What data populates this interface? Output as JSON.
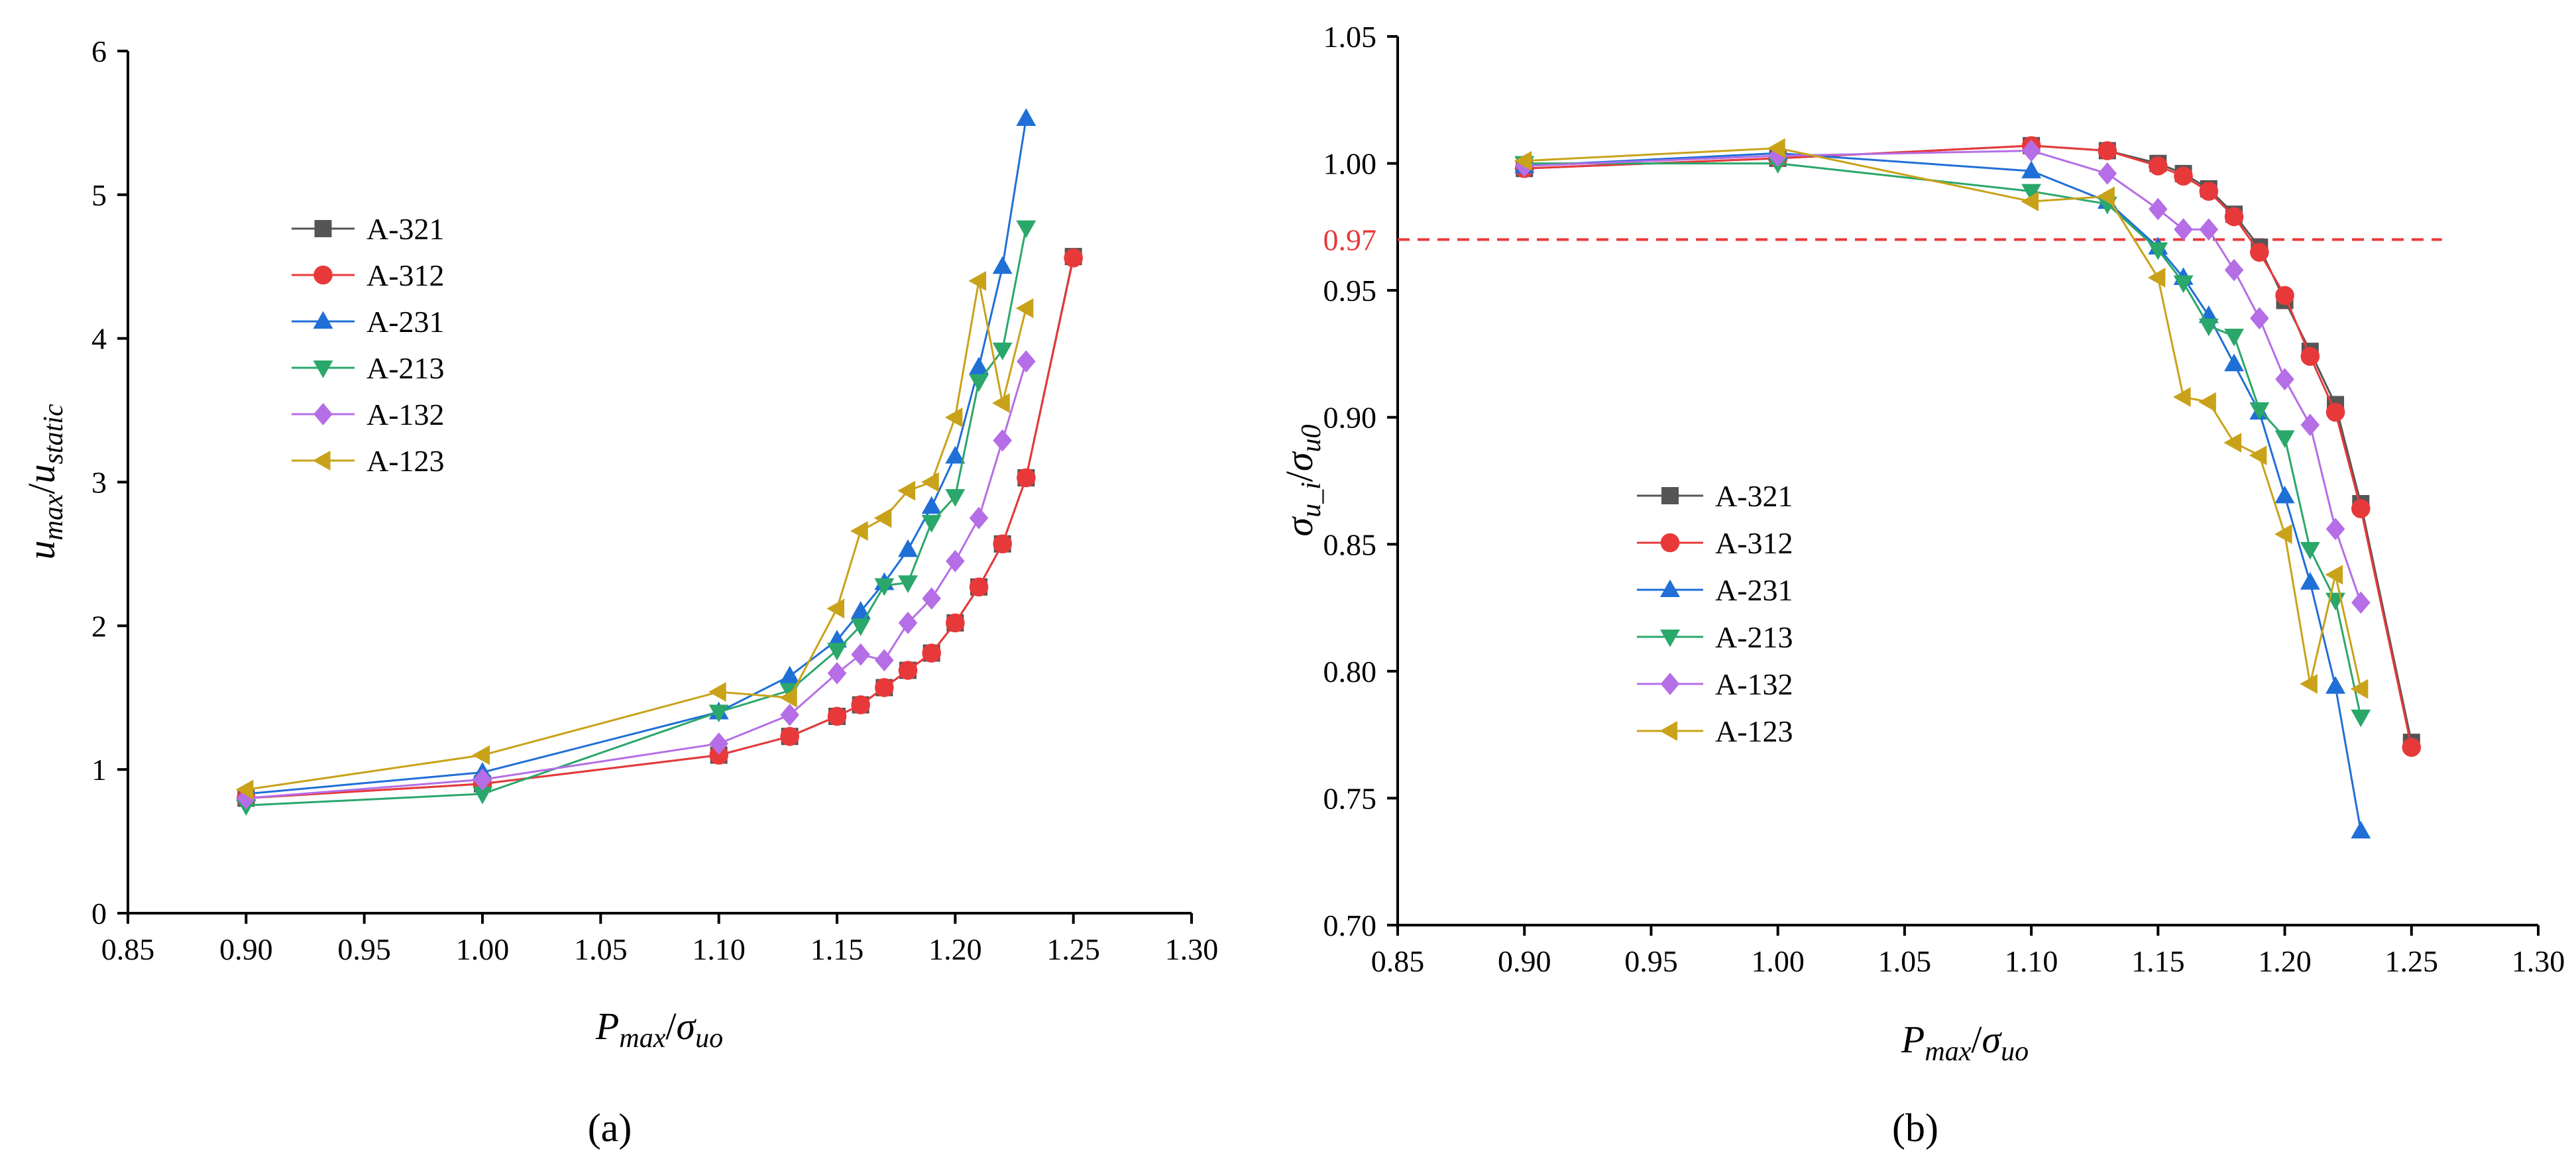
{
  "figure": {
    "panel_labels": [
      "(a)",
      "(b)"
    ]
  },
  "colors": {
    "A-321": "#555555",
    "A-312": "#e8393a",
    "A-231": "#1f6fd6",
    "A-213": "#2aa76a",
    "A-132": "#b56ee6",
    "A-123": "#c9a21a",
    "reference_line": "#e8393a"
  },
  "markers": {
    "A-321": "square",
    "A-312": "circle",
    "A-231": "triangle-up",
    "A-213": "triangle-down",
    "A-132": "diamond",
    "A-123": "triangle-left"
  },
  "chart_data": [
    {
      "type": "line",
      "panel": "(a)",
      "xlabel": {
        "main": "P",
        "main_sub": "max",
        "sep": "/",
        "denom": "σ",
        "denom_sub": "uo"
      },
      "ylabel": {
        "main": "u",
        "main_sub": "max",
        "sep": "/",
        "denom": "u",
        "denom_sub": "static"
      },
      "xlim": [
        0.85,
        1.3
      ],
      "ylim": [
        0,
        6
      ],
      "xticks": [
        "0.85",
        "0.90",
        "0.95",
        "1.00",
        "1.05",
        "1.10",
        "1.15",
        "1.20",
        "1.25",
        "1.30"
      ],
      "yticks": [
        "0",
        "1",
        "2",
        "3",
        "4",
        "5",
        "6"
      ],
      "legend": {
        "position": "upper-left",
        "entries": [
          "A-321",
          "A-312",
          "A-231",
          "A-213",
          "A-132",
          "A-123"
        ]
      },
      "series": [
        {
          "name": "A-321",
          "x": [
            0.9,
            1.0,
            1.1,
            1.13,
            1.15,
            1.16,
            1.17,
            1.18,
            1.19,
            1.2,
            1.21,
            1.22,
            1.23,
            1.25
          ],
          "y": [
            0.8,
            0.9,
            1.1,
            1.23,
            1.37,
            1.45,
            1.57,
            1.69,
            1.81,
            2.02,
            2.27,
            2.57,
            3.03,
            4.57
          ]
        },
        {
          "name": "A-312",
          "x": [
            0.9,
            1.0,
            1.1,
            1.13,
            1.15,
            1.16,
            1.17,
            1.18,
            1.19,
            1.2,
            1.21,
            1.22,
            1.23,
            1.25
          ],
          "y": [
            0.8,
            0.9,
            1.1,
            1.23,
            1.37,
            1.45,
            1.57,
            1.69,
            1.81,
            2.02,
            2.27,
            2.57,
            3.03,
            4.56
          ]
        },
        {
          "name": "A-231",
          "x": [
            0.9,
            1.0,
            1.1,
            1.13,
            1.15,
            1.16,
            1.17,
            1.18,
            1.19,
            1.2,
            1.21,
            1.22,
            1.23
          ],
          "y": [
            0.83,
            0.98,
            1.4,
            1.65,
            1.9,
            2.1,
            2.3,
            2.53,
            2.83,
            3.18,
            3.8,
            4.5,
            5.53
          ]
        },
        {
          "name": "A-213",
          "x": [
            0.9,
            1.0,
            1.1,
            1.13,
            1.15,
            1.16,
            1.17,
            1.18,
            1.19,
            1.2,
            1.21,
            1.22,
            1.23
          ],
          "y": [
            0.75,
            0.83,
            1.4,
            1.55,
            1.83,
            2.0,
            2.28,
            2.3,
            2.72,
            2.9,
            3.7,
            3.92,
            4.77
          ]
        },
        {
          "name": "A-132",
          "x": [
            0.9,
            1.0,
            1.1,
            1.13,
            1.15,
            1.16,
            1.17,
            1.18,
            1.19,
            1.2,
            1.21,
            1.22,
            1.23
          ],
          "y": [
            0.8,
            0.93,
            1.18,
            1.38,
            1.67,
            1.8,
            1.76,
            2.02,
            2.19,
            2.45,
            2.75,
            3.29,
            3.84
          ]
        },
        {
          "name": "A-123",
          "x": [
            0.9,
            1.0,
            1.1,
            1.13,
            1.15,
            1.16,
            1.17,
            1.18,
            1.19,
            1.2,
            1.21,
            1.22,
            1.23
          ],
          "y": [
            0.86,
            1.1,
            1.54,
            1.5,
            2.12,
            2.66,
            2.75,
            2.94,
            3.0,
            3.45,
            4.4,
            3.55,
            4.21
          ]
        }
      ]
    },
    {
      "type": "line",
      "panel": "(b)",
      "xlabel": {
        "main": "P",
        "main_sub": "max",
        "sep": "/",
        "denom": "σ",
        "denom_sub": "uo"
      },
      "ylabel": {
        "main": "σ",
        "main_sub": "u_i",
        "sep": "/",
        "denom": "σ",
        "denom_sub": "u0"
      },
      "xlim": [
        0.85,
        1.3
      ],
      "ylim": [
        0.7,
        1.05
      ],
      "xticks": [
        "0.85",
        "0.90",
        "0.95",
        "1.00",
        "1.05",
        "1.10",
        "1.15",
        "1.20",
        "1.25",
        "1.30"
      ],
      "yticks": [
        "0.70",
        "0.75",
        "0.80",
        "0.85",
        "0.90",
        "0.95",
        "1.00",
        "1.05"
      ],
      "reference_line": {
        "y": 0.97,
        "label": "0.97",
        "style": "dashed"
      },
      "legend": {
        "position": "lower-left",
        "entries": [
          "A-321",
          "A-312",
          "A-231",
          "A-213",
          "A-132",
          "A-123"
        ]
      },
      "series": [
        {
          "name": "A-321",
          "x": [
            0.9,
            1.0,
            1.1,
            1.13,
            1.15,
            1.16,
            1.17,
            1.18,
            1.19,
            1.2,
            1.21,
            1.22,
            1.23,
            1.25
          ],
          "y": [
            0.998,
            1.002,
            1.007,
            1.005,
            1.0,
            0.996,
            0.99,
            0.98,
            0.967,
            0.946,
            0.926,
            0.905,
            0.866,
            0.772
          ]
        },
        {
          "name": "A-312",
          "x": [
            0.9,
            1.0,
            1.1,
            1.13,
            1.15,
            1.16,
            1.17,
            1.18,
            1.19,
            1.2,
            1.21,
            1.22,
            1.23,
            1.25
          ],
          "y": [
            0.998,
            1.002,
            1.007,
            1.005,
            0.999,
            0.995,
            0.989,
            0.979,
            0.965,
            0.948,
            0.924,
            0.902,
            0.864,
            0.77
          ]
        },
        {
          "name": "A-231",
          "x": [
            0.9,
            1.0,
            1.1,
            1.13,
            1.15,
            1.16,
            1.17,
            1.18,
            1.19,
            1.2,
            1.21,
            1.22,
            1.23
          ],
          "y": [
            0.999,
            1.004,
            0.997,
            0.985,
            0.967,
            0.955,
            0.94,
            0.921,
            0.902,
            0.869,
            0.835,
            0.794,
            0.737
          ]
        },
        {
          "name": "A-213",
          "x": [
            0.9,
            1.0,
            1.1,
            1.13,
            1.15,
            1.16,
            1.17,
            1.18,
            1.19,
            1.2,
            1.21,
            1.22,
            1.23
          ],
          "y": [
            1.0,
            1.0,
            0.989,
            0.984,
            0.966,
            0.953,
            0.936,
            0.932,
            0.903,
            0.892,
            0.848,
            0.828,
            0.782
          ]
        },
        {
          "name": "A-132",
          "x": [
            0.9,
            1.0,
            1.1,
            1.13,
            1.15,
            1.16,
            1.17,
            1.18,
            1.19,
            1.2,
            1.21,
            1.22,
            1.23
          ],
          "y": [
            0.999,
            1.003,
            1.005,
            0.996,
            0.982,
            0.974,
            0.974,
            0.958,
            0.939,
            0.915,
            0.897,
            0.856,
            0.827
          ]
        },
        {
          "name": "A-123",
          "x": [
            0.9,
            1.0,
            1.1,
            1.13,
            1.15,
            1.16,
            1.17,
            1.18,
            1.19,
            1.2,
            1.21,
            1.22,
            1.23
          ],
          "y": [
            1.001,
            1.006,
            0.985,
            0.987,
            0.955,
            0.908,
            0.906,
            0.89,
            0.885,
            0.854,
            0.795,
            0.838,
            0.793
          ]
        }
      ]
    }
  ]
}
